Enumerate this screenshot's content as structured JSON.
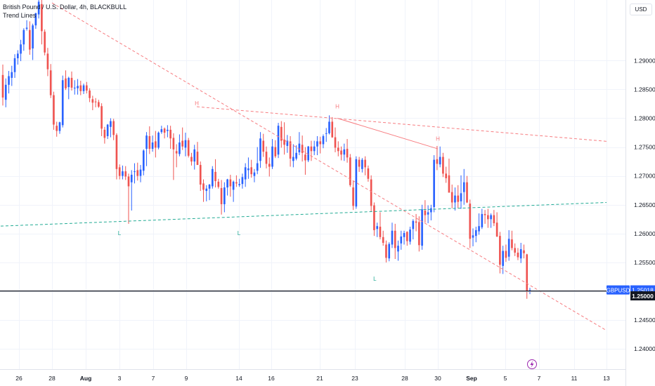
{
  "header": {
    "title": "British Pound / U.S. Dollar, 4h, BLACKBULL",
    "indicator": "Trend Lines"
  },
  "currency_button": "USD",
  "colors": {
    "up": "#2962ff",
    "down": "#ef5350",
    "trend_red": "#f77c80",
    "trend_green": "#22ab94",
    "label_bg": "#2962ff",
    "black_label_bg": "#131722",
    "grid": "#f0f3fa",
    "axis_text": "#131722"
  },
  "logo_icon": "lightning-icon",
  "chart_data": {
    "type": "candlestick",
    "symbol": "GBPUSD",
    "timeframe": "4h",
    "y_axis": {
      "ylim": [
        1.2365,
        1.3005
      ],
      "ticks": [
        "1.29000",
        "1.28500",
        "1.28000",
        "1.27500",
        "1.27000",
        "1.26500",
        "1.26000",
        "1.25500",
        "1.25000",
        "1.24500",
        "1.24000"
      ]
    },
    "x_axis": {
      "ticks": [
        "26",
        "28",
        "Aug",
        "3",
        "7",
        "9",
        "14",
        "16",
        "21",
        "23",
        "28",
        "30",
        "Sep",
        "5",
        "7",
        "11",
        "13"
      ],
      "bold": [
        "Aug",
        "Sep"
      ]
    },
    "last_price": {
      "label": "GBPUSD",
      "value": "1.25018"
    },
    "level": {
      "value": "1.25000"
    },
    "pivots": [
      {
        "text": "H",
        "type": "high",
        "date": "Aug 10",
        "price": 1.2815
      },
      {
        "text": "H",
        "type": "high",
        "date": "Aug 22",
        "price": 1.281
      },
      {
        "text": "H",
        "type": "high",
        "date": "Aug 30",
        "price": 1.2754
      },
      {
        "text": "L",
        "type": "low",
        "date": "Aug 3",
        "price": 1.2612
      },
      {
        "text": "L",
        "type": "low",
        "date": "Aug 14",
        "price": 1.2612
      },
      {
        "text": "L",
        "type": "low",
        "date": "Aug 25",
        "price": 1.2533
      }
    ],
    "trend_lines": [
      {
        "style": "dashed",
        "color": "red",
        "from": {
          "date": "Jul 28",
          "price": 1.3
        },
        "to": {
          "date": "Sep 13",
          "price": 1.2432
        }
      },
      {
        "style": "dashed",
        "color": "red",
        "from": {
          "date": "Aug 10",
          "price": 1.282
        },
        "to": {
          "date": "Sep 13",
          "price": 1.276
        }
      },
      {
        "style": "solid",
        "color": "red",
        "from": {
          "date": "Aug 22",
          "price": 1.28
        },
        "to": {
          "date": "Aug 30",
          "price": 1.2747
        }
      },
      {
        "style": "dashed",
        "color": "green",
        "from": {
          "date": "Jul 24",
          "price": 1.2612
        },
        "to": {
          "date": "Sep 13",
          "price": 1.2654
        }
      }
    ],
    "candles": [
      [
        1.2875,
        1.2893,
        1.2822,
        1.2836
      ],
      [
        1.2832,
        1.2869,
        1.2819,
        1.2858
      ],
      [
        1.2858,
        1.2882,
        1.2843,
        1.2873
      ],
      [
        1.287,
        1.2891,
        1.2856,
        1.288
      ],
      [
        1.288,
        1.2911,
        1.287,
        1.2904
      ],
      [
        1.2904,
        1.2918,
        1.2893,
        1.2912
      ],
      [
        1.2912,
        1.2936,
        1.2899,
        1.2928
      ],
      [
        1.2928,
        1.2956,
        1.2917,
        1.2953
      ],
      [
        1.2955,
        1.297,
        1.2952,
        1.2957
      ],
      [
        1.2953,
        1.2968,
        1.291,
        1.2919
      ],
      [
        1.2921,
        1.2964,
        1.2901,
        1.2961
      ],
      [
        1.2961,
        1.2983,
        1.2955,
        1.2982
      ],
      [
        1.298,
        1.3012,
        1.2973,
        1.3002
      ],
      [
        1.2998,
        1.3012,
        1.2928,
        1.2951
      ],
      [
        1.295,
        1.2954,
        1.2909,
        1.2914
      ],
      [
        1.2912,
        1.2922,
        1.2873,
        1.2885
      ],
      [
        1.2883,
        1.2894,
        1.2835,
        1.284
      ],
      [
        1.284,
        1.2846,
        1.278,
        1.2789
      ],
      [
        1.2787,
        1.2794,
        1.2768,
        1.2778
      ],
      [
        1.2778,
        1.2794,
        1.2773,
        1.2793
      ],
      [
        1.2788,
        1.2874,
        1.2784,
        1.2866
      ],
      [
        1.2869,
        1.2883,
        1.2849,
        1.2852
      ],
      [
        1.2854,
        1.2872,
        1.2833,
        1.287
      ],
      [
        1.287,
        1.2881,
        1.2848,
        1.2853
      ],
      [
        1.2853,
        1.2866,
        1.2841,
        1.2853
      ],
      [
        1.2852,
        1.2868,
        1.2841,
        1.2856
      ],
      [
        1.2857,
        1.2865,
        1.284,
        1.2847
      ],
      [
        1.2847,
        1.286,
        1.2842,
        1.2857
      ],
      [
        1.2857,
        1.2863,
        1.2843,
        1.2848
      ],
      [
        1.2848,
        1.2852,
        1.2828,
        1.2835
      ],
      [
        1.2833,
        1.2839,
        1.2814,
        1.2827
      ],
      [
        1.2829,
        1.2835,
        1.2819,
        1.2828
      ],
      [
        1.2828,
        1.2832,
        1.2818,
        1.282
      ],
      [
        1.2821,
        1.2826,
        1.2769,
        1.2782
      ],
      [
        1.278,
        1.2785,
        1.2756,
        1.2766
      ],
      [
        1.2769,
        1.279,
        1.2764,
        1.2789
      ],
      [
        1.2785,
        1.28,
        1.2767,
        1.2795
      ],
      [
        1.2795,
        1.2799,
        1.2762,
        1.2771
      ],
      [
        1.2771,
        1.2774,
        1.2694,
        1.2712
      ],
      [
        1.2715,
        1.272,
        1.2694,
        1.27
      ],
      [
        1.27,
        1.2718,
        1.2694,
        1.2708
      ],
      [
        1.2708,
        1.2717,
        1.2693,
        1.2699
      ],
      [
        1.2699,
        1.2704,
        1.2617,
        1.2682
      ],
      [
        1.2689,
        1.271,
        1.264,
        1.2702
      ],
      [
        1.2707,
        1.2722,
        1.2687,
        1.2708
      ],
      [
        1.271,
        1.2723,
        1.2692,
        1.27
      ],
      [
        1.27,
        1.2719,
        1.2689,
        1.2711
      ],
      [
        1.2709,
        1.2746,
        1.2701,
        1.2744
      ],
      [
        1.2747,
        1.2776,
        1.2717,
        1.277
      ],
      [
        1.2769,
        1.2786,
        1.2738,
        1.2747
      ],
      [
        1.2747,
        1.277,
        1.2742,
        1.2758
      ],
      [
        1.276,
        1.2778,
        1.2732,
        1.2749
      ],
      [
        1.2749,
        1.2777,
        1.2746,
        1.2775
      ],
      [
        1.2776,
        1.2787,
        1.2773,
        1.2781
      ],
      [
        1.2782,
        1.2784,
        1.2765,
        1.2775
      ],
      [
        1.2778,
        1.2788,
        1.2767,
        1.278
      ],
      [
        1.278,
        1.2787,
        1.2747,
        1.2765
      ],
      [
        1.2766,
        1.2774,
        1.2693,
        1.2746
      ],
      [
        1.2743,
        1.2755,
        1.2715,
        1.2739
      ],
      [
        1.2738,
        1.2772,
        1.2734,
        1.2758
      ],
      [
        1.2761,
        1.2784,
        1.2745,
        1.2751
      ],
      [
        1.2749,
        1.2775,
        1.2734,
        1.2762
      ],
      [
        1.2762,
        1.2766,
        1.2732,
        1.2735
      ],
      [
        1.2733,
        1.274,
        1.2718,
        1.2725
      ],
      [
        1.2725,
        1.2754,
        1.2711,
        1.2746
      ],
      [
        1.2742,
        1.2759,
        1.2719,
        1.2719
      ],
      [
        1.2719,
        1.2725,
        1.2674,
        1.2685
      ],
      [
        1.2687,
        1.2694,
        1.2655,
        1.2676
      ],
      [
        1.2674,
        1.2684,
        1.2656,
        1.2678
      ],
      [
        1.2678,
        1.2686,
        1.2658,
        1.2685
      ],
      [
        1.2682,
        1.2717,
        1.2678,
        1.2712
      ],
      [
        1.2707,
        1.2729,
        1.268,
        1.2691
      ],
      [
        1.269,
        1.2695,
        1.2678,
        1.2681
      ],
      [
        1.2679,
        1.2693,
        1.2633,
        1.2651
      ],
      [
        1.2651,
        1.2689,
        1.2637,
        1.268
      ],
      [
        1.268,
        1.2695,
        1.2666,
        1.2694
      ],
      [
        1.2694,
        1.2702,
        1.2664,
        1.2682
      ],
      [
        1.2676,
        1.2692,
        1.2655,
        1.269
      ],
      [
        1.2689,
        1.2701,
        1.2681,
        1.2687
      ],
      [
        1.2684,
        1.2695,
        1.2681,
        1.2686
      ],
      [
        1.2686,
        1.2704,
        1.2678,
        1.2698
      ],
      [
        1.2694,
        1.2722,
        1.2681,
        1.2715
      ],
      [
        1.271,
        1.2732,
        1.2695,
        1.2713
      ],
      [
        1.2715,
        1.2728,
        1.2697,
        1.2703
      ],
      [
        1.27,
        1.2712,
        1.2689,
        1.2706
      ],
      [
        1.2709,
        1.275,
        1.2703,
        1.2722
      ],
      [
        1.2726,
        1.2776,
        1.2714,
        1.2765
      ],
      [
        1.2761,
        1.2773,
        1.2733,
        1.2742
      ],
      [
        1.2742,
        1.2751,
        1.2713,
        1.2721
      ],
      [
        1.2721,
        1.2732,
        1.2699,
        1.2716
      ],
      [
        1.2716,
        1.2764,
        1.2712,
        1.2751
      ],
      [
        1.275,
        1.2762,
        1.2731,
        1.2734
      ],
      [
        1.2737,
        1.2792,
        1.2731,
        1.2787
      ],
      [
        1.2785,
        1.2795,
        1.2749,
        1.2761
      ],
      [
        1.2763,
        1.2793,
        1.2737,
        1.2754
      ],
      [
        1.2752,
        1.2771,
        1.274,
        1.2761
      ],
      [
        1.276,
        1.2769,
        1.2716,
        1.273
      ],
      [
        1.2726,
        1.2755,
        1.2715,
        1.2733
      ],
      [
        1.273,
        1.2753,
        1.2727,
        1.274
      ],
      [
        1.2741,
        1.2776,
        1.2736,
        1.2756
      ],
      [
        1.2754,
        1.277,
        1.2725,
        1.274
      ],
      [
        1.2737,
        1.275,
        1.2702,
        1.2727
      ],
      [
        1.2727,
        1.2752,
        1.2724,
        1.2751
      ],
      [
        1.2751,
        1.2761,
        1.2726,
        1.2743
      ],
      [
        1.2743,
        1.2761,
        1.2736,
        1.2751
      ],
      [
        1.2751,
        1.2769,
        1.2736,
        1.276
      ],
      [
        1.276,
        1.2768,
        1.2739,
        1.2755
      ],
      [
        1.2755,
        1.2772,
        1.2748,
        1.2769
      ],
      [
        1.2773,
        1.2783,
        1.2759,
        1.2774
      ],
      [
        1.2774,
        1.2805,
        1.2772,
        1.2794
      ],
      [
        1.2794,
        1.2802,
        1.2766,
        1.2767
      ],
      [
        1.2767,
        1.2784,
        1.2741,
        1.2749
      ],
      [
        1.2749,
        1.276,
        1.2734,
        1.2743
      ],
      [
        1.2744,
        1.2751,
        1.2727,
        1.2737
      ],
      [
        1.2737,
        1.2756,
        1.2726,
        1.2746
      ],
      [
        1.2747,
        1.2764,
        1.2723,
        1.2732
      ],
      [
        1.2732,
        1.2738,
        1.2681,
        1.2684
      ],
      [
        1.268,
        1.2691,
        1.2641,
        1.2648
      ],
      [
        1.2647,
        1.2734,
        1.2643,
        1.2729
      ],
      [
        1.2728,
        1.2733,
        1.2707,
        1.2716
      ],
      [
        1.2712,
        1.2731,
        1.2706,
        1.2728
      ],
      [
        1.2728,
        1.2734,
        1.2701,
        1.2715
      ],
      [
        1.2713,
        1.2718,
        1.269,
        1.2695
      ],
      [
        1.2694,
        1.2701,
        1.2638,
        1.2648
      ],
      [
        1.2649,
        1.2654,
        1.2596,
        1.2606
      ],
      [
        1.2608,
        1.2619,
        1.2594,
        1.2613
      ],
      [
        1.2612,
        1.2637,
        1.259,
        1.2594
      ],
      [
        1.2594,
        1.2605,
        1.2579,
        1.2584
      ],
      [
        1.2581,
        1.2588,
        1.255,
        1.2558
      ],
      [
        1.2557,
        1.2585,
        1.2552,
        1.2582
      ],
      [
        1.2581,
        1.2619,
        1.2575,
        1.2605
      ],
      [
        1.2605,
        1.2617,
        1.2556,
        1.2575
      ],
      [
        1.2569,
        1.2588,
        1.2553,
        1.2579
      ],
      [
        1.2583,
        1.2605,
        1.2572,
        1.2595
      ],
      [
        1.2594,
        1.2605,
        1.2581,
        1.2601
      ],
      [
        1.2603,
        1.2604,
        1.2579,
        1.2587
      ],
      [
        1.2586,
        1.2612,
        1.2581,
        1.2607
      ],
      [
        1.2608,
        1.2625,
        1.259,
        1.2622
      ],
      [
        1.2621,
        1.2634,
        1.2604,
        1.2619
      ],
      [
        1.262,
        1.263,
        1.2569,
        1.258
      ],
      [
        1.2579,
        1.265,
        1.2572,
        1.2642
      ],
      [
        1.264,
        1.2658,
        1.2619,
        1.2632
      ],
      [
        1.2633,
        1.2649,
        1.2618,
        1.2637
      ],
      [
        1.2637,
        1.265,
        1.2623,
        1.2644
      ],
      [
        1.2646,
        1.2736,
        1.2637,
        1.2728
      ],
      [
        1.2729,
        1.2752,
        1.271,
        1.2721
      ],
      [
        1.272,
        1.2751,
        1.2715,
        1.2733
      ],
      [
        1.2733,
        1.274,
        1.2698,
        1.2704
      ],
      [
        1.2704,
        1.2716,
        1.2688,
        1.2696
      ],
      [
        1.2701,
        1.273,
        1.2677,
        1.2671
      ],
      [
        1.2672,
        1.2685,
        1.2644,
        1.2654
      ],
      [
        1.2654,
        1.268,
        1.264,
        1.2666
      ],
      [
        1.2666,
        1.2684,
        1.2644,
        1.2655
      ],
      [
        1.2656,
        1.2701,
        1.2643,
        1.267
      ],
      [
        1.2672,
        1.2712,
        1.265,
        1.2689
      ],
      [
        1.2689,
        1.27,
        1.2653,
        1.2654
      ],
      [
        1.2652,
        1.2659,
        1.2575,
        1.2591
      ],
      [
        1.2593,
        1.2609,
        1.2578,
        1.2597
      ],
      [
        1.2596,
        1.2612,
        1.2585,
        1.2606
      ],
      [
        1.2604,
        1.2635,
        1.2598,
        1.2613
      ],
      [
        1.2611,
        1.2643,
        1.2608,
        1.2634
      ],
      [
        1.2634,
        1.2641,
        1.2617,
        1.2632
      ],
      [
        1.2632,
        1.2643,
        1.261,
        1.2625
      ],
      [
        1.2625,
        1.2635,
        1.261,
        1.2632
      ],
      [
        1.2632,
        1.2641,
        1.2613,
        1.2618
      ],
      [
        1.2619,
        1.2637,
        1.2594,
        1.2595
      ],
      [
        1.2596,
        1.2603,
        1.2531,
        1.2546
      ],
      [
        1.2544,
        1.2579,
        1.253,
        1.257
      ],
      [
        1.257,
        1.2581,
        1.2551,
        1.2558
      ],
      [
        1.256,
        1.2606,
        1.2553,
        1.2591
      ],
      [
        1.259,
        1.2605,
        1.2571,
        1.2575
      ],
      [
        1.2575,
        1.2583,
        1.2561,
        1.2567
      ],
      [
        1.2567,
        1.2575,
        1.2554,
        1.2559
      ],
      [
        1.2557,
        1.2584,
        1.2549,
        1.2573
      ],
      [
        1.2571,
        1.2581,
        1.2557,
        1.2566
      ],
      [
        1.2564,
        1.2565,
        1.2487,
        1.25
      ],
      [
        1.25,
        1.2506,
        1.2495,
        1.2502
      ]
    ]
  }
}
